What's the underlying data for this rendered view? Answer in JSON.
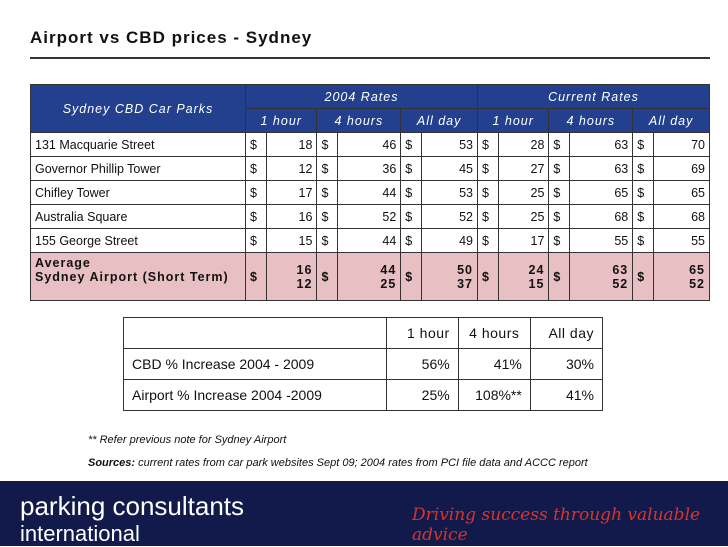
{
  "title": "Airport vs CBD prices - Sydney",
  "rates_table": {
    "park_header": "Sydney CBD Car Parks",
    "group1": "2004 Rates",
    "group2": "Current Rates",
    "sub": [
      "1 hour",
      "4 hours",
      "All day",
      "1 hour",
      "4 hours",
      "All day"
    ],
    "currency": "$",
    "rows": [
      {
        "name": "131 Macquarie Street",
        "v": [
          "18",
          "46",
          "53",
          "28",
          "63",
          "70"
        ]
      },
      {
        "name": "Governor Phillip Tower",
        "v": [
          "12",
          "36",
          "45",
          "27",
          "63",
          "69"
        ]
      },
      {
        "name": "Chifley Tower",
        "v": [
          "17",
          "44",
          "53",
          "25",
          "65",
          "65"
        ]
      },
      {
        "name": "Australia Square",
        "v": [
          "16",
          "52",
          "52",
          "25",
          "68",
          "68"
        ]
      },
      {
        "name": "155 George Street",
        "v": [
          "15",
          "44",
          "49",
          "17",
          "55",
          "55"
        ]
      }
    ],
    "pink": {
      "name_a": "Average",
      "name_b": "Sydney Airport (Short Term)",
      "avg": [
        "16",
        "44",
        "50",
        "24",
        "63",
        "65"
      ],
      "airport": [
        "12",
        "25",
        "37",
        "15",
        "52",
        "52"
      ]
    }
  },
  "increase_table": {
    "headers": [
      "1 hour",
      "4 hours",
      "All day"
    ],
    "rows": [
      {
        "label": "CBD % Increase 2004 - 2009",
        "v": [
          "56%",
          "41%",
          "30%"
        ]
      },
      {
        "label": "Airport % Increase 2004 -2009",
        "v": [
          "25%",
          "108%**",
          "41%"
        ]
      }
    ]
  },
  "note": "** Refer previous note for Sydney Airport",
  "sources_label": "Sources:",
  "sources_text": " current rates from car park websites Sept 09; 2004 rates from PCI file data and ACCC report",
  "footer": {
    "logo_line1": "parking consultants",
    "logo_line2": "international",
    "tagline": "Driving success through valuable advice"
  }
}
